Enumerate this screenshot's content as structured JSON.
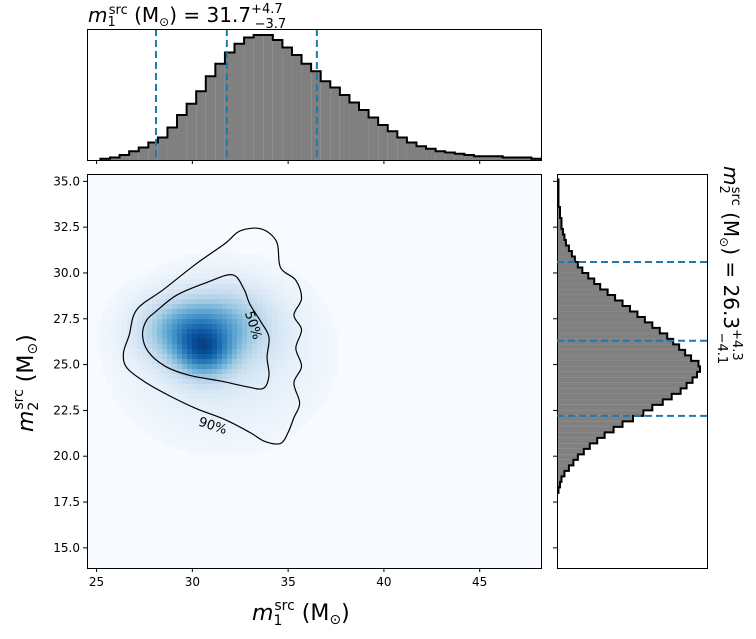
{
  "chart_data": [
    {
      "type": "heatmap",
      "panel": "joint",
      "xlabel": "m_1^src (M_⊙)",
      "ylabel": "m_2^src (M_⊙)",
      "xlim": [
        24.5,
        48.2
      ],
      "ylim": [
        13.9,
        35.4
      ],
      "xticks": [
        25,
        30,
        35,
        40,
        45
      ],
      "yticks": [
        15.0,
        17.5,
        20.0,
        22.5,
        25.0,
        27.5,
        30.0,
        32.5,
        35.0
      ],
      "colormap": "Blues",
      "density_peaks": [
        {
          "x": 30.6,
          "y": 25.6,
          "sx": 1.0,
          "sy": 0.9,
          "w": 1.0
        },
        {
          "x": 29.6,
          "y": 26.9,
          "sx": 1.5,
          "sy": 1.1,
          "w": 0.85
        },
        {
          "x": 31.8,
          "y": 27.2,
          "sx": 1.6,
          "sy": 1.3,
          "w": 0.55
        },
        {
          "x": 31.5,
          "y": 25.5,
          "sx": 3.0,
          "sy": 2.7,
          "w": 0.22
        }
      ],
      "contours": [
        {
          "label": "50%",
          "points": [
            [
              28.1,
              27.9
            ],
            [
              29.2,
              28.8
            ],
            [
              30.8,
              29.5
            ],
            [
              32.1,
              29.9
            ],
            [
              32.7,
              29.1
            ],
            [
              33.0,
              28.3
            ],
            [
              33.6,
              27.3
            ],
            [
              34.0,
              26.5
            ],
            [
              33.9,
              25.4
            ],
            [
              34.0,
              24.4
            ],
            [
              33.7,
              23.7
            ],
            [
              32.8,
              23.8
            ],
            [
              31.5,
              24.1
            ],
            [
              29.9,
              24.4
            ],
            [
              28.6,
              24.9
            ],
            [
              27.7,
              25.7
            ],
            [
              27.4,
              26.6
            ],
            [
              27.6,
              27.4
            ],
            [
              28.1,
              27.9
            ]
          ]
        },
        {
          "label": "90%",
          "points": [
            [
              27.1,
              28.0
            ],
            [
              28.5,
              29.1
            ],
            [
              30.2,
              30.5
            ],
            [
              31.7,
              31.6
            ],
            [
              32.5,
              32.3
            ],
            [
              33.6,
              32.4
            ],
            [
              34.4,
              31.7
            ],
            [
              34.6,
              30.3
            ],
            [
              35.4,
              29.6
            ],
            [
              35.7,
              28.6
            ],
            [
              35.3,
              27.7
            ],
            [
              35.7,
              26.9
            ],
            [
              35.4,
              25.9
            ],
            [
              35.7,
              24.9
            ],
            [
              35.3,
              24.0
            ],
            [
              35.6,
              22.9
            ],
            [
              35.3,
              22.1
            ],
            [
              35.0,
              21.3
            ],
            [
              34.6,
              20.7
            ],
            [
              33.8,
              20.8
            ],
            [
              33.0,
              21.3
            ],
            [
              31.7,
              22.0
            ],
            [
              30.2,
              22.6
            ],
            [
              28.8,
              23.3
            ],
            [
              27.6,
              24.0
            ],
            [
              26.6,
              24.8
            ],
            [
              26.4,
              25.6
            ],
            [
              26.7,
              26.6
            ],
            [
              27.1,
              28.0
            ]
          ]
        }
      ]
    },
    {
      "type": "histogram",
      "panel": "top-marginal",
      "title": "m_1^src (M_⊙) = 31.7 (+4.7 / −3.7)",
      "x_start": 25.2,
      "bin_width": 0.5,
      "counts": [
        1,
        2,
        4,
        7,
        10,
        14,
        18,
        26,
        36,
        45,
        55,
        67,
        77,
        86,
        93,
        98,
        100,
        100,
        96,
        90,
        84,
        77,
        71,
        63,
        58,
        52,
        46,
        40,
        34,
        28,
        23,
        18,
        14,
        11,
        9,
        7,
        6,
        5,
        4,
        3,
        3,
        3,
        2,
        2,
        2,
        1,
        1,
        1,
        1,
        1,
        1,
        1,
        1,
        1,
        1,
        1,
        1,
        1,
        1,
        1
      ],
      "quantile_lines": [
        28.1,
        31.8,
        36.5
      ]
    },
    {
      "type": "histogram",
      "panel": "right-marginal",
      "title": "m_2^src (M_⊙) = 26.3 (+4.3 / −4.1)",
      "orientation": "horizontal",
      "y_start": 18.0,
      "bin_width": 0.3,
      "counts": [
        1,
        2,
        3,
        5,
        8,
        11,
        14,
        18,
        22,
        27,
        32,
        38,
        44,
        51,
        58,
        64,
        71,
        77,
        83,
        87,
        91,
        94,
        96,
        95,
        90,
        86,
        82,
        78,
        74,
        69,
        64,
        59,
        54,
        49,
        44,
        39,
        34,
        29,
        25,
        21,
        17,
        14,
        12,
        10,
        8,
        6,
        5,
        4,
        3,
        3,
        2,
        2,
        1,
        1,
        1,
        1,
        1
      ],
      "quantile_lines": [
        22.2,
        26.3,
        30.6
      ]
    }
  ],
  "labels": {
    "top_title_sym": "m",
    "top_title_sub": "1",
    "top_title_sup": "src",
    "top_title_unit": " (M",
    "top_title_sun": "⊙",
    "top_title_eq": ") = 31.7",
    "top_title_plus": "+4.7",
    "top_title_minus": "−3.7",
    "right_title_sym": "m",
    "right_title_sub": "2",
    "right_title_sup": "src",
    "right_title_unit": " (M",
    "right_title_sun": "⊙",
    "right_title_eq": ") = 26.3",
    "right_title_plus": "+4.3",
    "right_title_minus": "−4.1",
    "x_sym": "m",
    "x_sub": "1",
    "x_sup": "src",
    "x_unit": " (M",
    "x_sun": "⊙",
    "x_close": ")",
    "y_sym": "m",
    "y_sub": "2",
    "y_sup": "src",
    "y_unit": " (M",
    "y_sun": "⊙",
    "y_close": ")",
    "contour_50": "50%",
    "contour_90": "90%"
  },
  "colors": {
    "hist_fill": "#808080",
    "hist_edge": "#000000",
    "quantile_line": "#1f77b4",
    "contour_line": "#000000",
    "heat_low": "#f7fbff",
    "heat_high": "#08306b"
  }
}
